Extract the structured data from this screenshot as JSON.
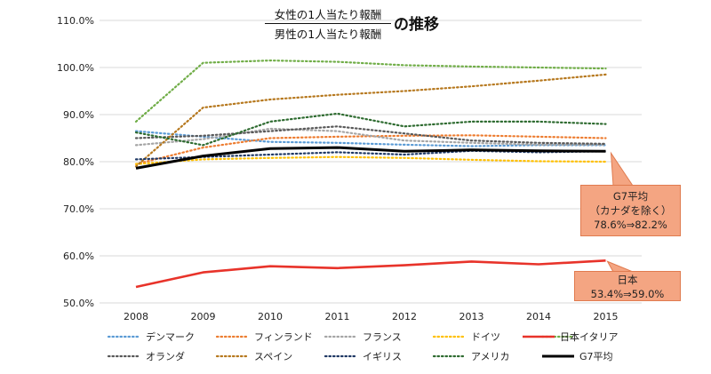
{
  "title": {
    "numerator": "女性の1人当たり報酬",
    "denominator": "男性の1人当たり報酬",
    "suffix": "の推移"
  },
  "chart_data": {
    "type": "line",
    "x": [
      "2008",
      "2009",
      "2010",
      "2011",
      "2012",
      "2013",
      "2014",
      "2015"
    ],
    "ylim": [
      50,
      110
    ],
    "yticks": [
      "50.0%",
      "60.0%",
      "70.0%",
      "80.0%",
      "90.0%",
      "100.0%",
      "110.0%"
    ],
    "grid": true,
    "legend_position": "bottom",
    "series": [
      {
        "name": "デンマーク",
        "color": "#5b9bd5",
        "style": "dotted",
        "values": [
          86.5,
          85.3,
          84.2,
          84.0,
          83.6,
          83.3,
          83.5,
          83.5
        ]
      },
      {
        "name": "フィンランド",
        "color": "#ed7d31",
        "style": "dotted",
        "values": [
          79.5,
          83.0,
          85.0,
          85.3,
          85.5,
          85.6,
          85.3,
          85.0
        ]
      },
      {
        "name": "フランス",
        "color": "#a5a5a5",
        "style": "dotted",
        "values": [
          83.5,
          84.8,
          87.0,
          86.5,
          84.5,
          84.0,
          83.6,
          83.6
        ]
      },
      {
        "name": "ドイツ",
        "color": "#ffc000",
        "style": "dotted",
        "values": [
          79.5,
          80.5,
          80.8,
          81.0,
          80.8,
          80.4,
          80.1,
          80.0
        ]
      },
      {
        "name": "イタリア",
        "color": "#70ad47",
        "style": "dotted",
        "values": [
          88.5,
          101.0,
          101.5,
          101.2,
          100.5,
          100.2,
          100.0,
          99.8
        ]
      },
      {
        "name": "日本",
        "color": "#e8332a",
        "style": "solid",
        "values": [
          53.4,
          56.5,
          57.8,
          57.4,
          58.0,
          58.8,
          58.2,
          59.0
        ]
      },
      {
        "name": "オランダ",
        "color": "#595959",
        "style": "dotted",
        "values": [
          85.0,
          85.5,
          86.5,
          87.5,
          86.0,
          84.5,
          84.0,
          83.8
        ]
      },
      {
        "name": "スペイン",
        "color": "#b6781e",
        "style": "dotted",
        "values": [
          79.0,
          91.5,
          93.2,
          94.2,
          95.0,
          96.0,
          97.2,
          98.5
        ]
      },
      {
        "name": "イギリス",
        "color": "#1f3864",
        "style": "dotted",
        "values": [
          80.5,
          81.0,
          81.5,
          82.0,
          81.5,
          82.3,
          82.0,
          82.2
        ]
      },
      {
        "name": "アメリカ",
        "color": "#2e6b30",
        "style": "dotted",
        "values": [
          86.2,
          83.5,
          88.5,
          90.2,
          87.5,
          88.5,
          88.5,
          88.0
        ]
      },
      {
        "name": "G7平均",
        "color": "#000000",
        "style": "bold",
        "values": [
          78.6,
          81.2,
          82.8,
          83.0,
          82.2,
          82.5,
          82.3,
          82.2
        ]
      }
    ],
    "annotations": [
      {
        "lines": [
          "G7平均",
          "（カナダを除く）",
          "78.6%⇒82.2%"
        ]
      },
      {
        "lines": [
          "日本",
          "53.4%⇒59.0%"
        ]
      }
    ]
  }
}
